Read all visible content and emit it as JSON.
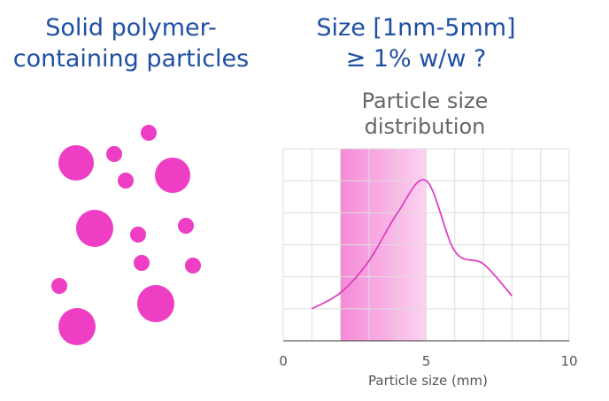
{
  "left_title": {
    "line1": "Solid polymer-",
    "line2": "containing particles"
  },
  "right_title": {
    "line1": "Size [1nm-5mm]",
    "line2": "≥ 1% w/w ?"
  },
  "particle_color": "#ee3ec4",
  "chart_data": {
    "type": "line",
    "title_line1": "Particle size",
    "title_line2": "distribution",
    "xlabel": "Particle size (mm)",
    "ylabel": "",
    "xlim": [
      0,
      10
    ],
    "ylim": [
      0,
      6
    ],
    "x_ticks": [
      "0",
      "5",
      "10"
    ],
    "grid": true,
    "highlight_range": [
      2,
      5
    ],
    "line_color": "#e040c0",
    "series": [
      {
        "x": [
          1,
          2,
          3,
          4,
          5,
          6,
          7,
          8
        ],
        "values": [
          1.0,
          1.5,
          2.5,
          4.0,
          5.0,
          2.8,
          2.4,
          1.4
        ]
      }
    ]
  }
}
